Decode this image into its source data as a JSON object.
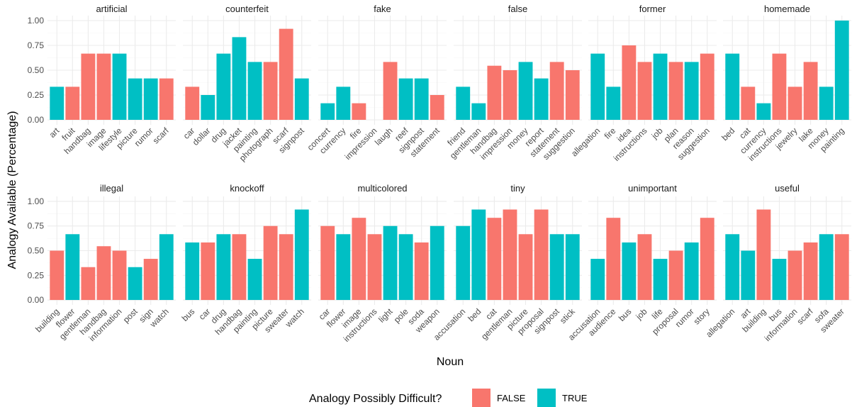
{
  "chart_data": {
    "type": "bar",
    "xlabel": "Noun",
    "ylabel": "Analogy Available (Percentage)",
    "ylim": [
      0,
      1
    ],
    "yticks": [
      "0.00",
      "0.25",
      "0.50",
      "0.75",
      "1.00"
    ],
    "grid": true,
    "legend": {
      "title": "Analogy Possibly Difficult?",
      "placement": "bottom",
      "entries": [
        {
          "label": "FALSE",
          "color": "#F8766D"
        },
        {
          "label": "TRUE",
          "color": "#00BFC4"
        }
      ]
    },
    "facets": [
      {
        "name": "artificial",
        "bars": [
          {
            "noun": "art",
            "value": 0.333,
            "difficult": "TRUE"
          },
          {
            "noun": "fruit",
            "value": 0.333,
            "difficult": "FALSE"
          },
          {
            "noun": "handbag",
            "value": 0.667,
            "difficult": "FALSE"
          },
          {
            "noun": "image",
            "value": 0.667,
            "difficult": "FALSE"
          },
          {
            "noun": "lifestyle",
            "value": 0.667,
            "difficult": "TRUE"
          },
          {
            "noun": "picture",
            "value": 0.417,
            "difficult": "TRUE"
          },
          {
            "noun": "rumor",
            "value": 0.417,
            "difficult": "TRUE"
          },
          {
            "noun": "scarf",
            "value": 0.417,
            "difficult": "FALSE"
          }
        ]
      },
      {
        "name": "counterfeit",
        "bars": [
          {
            "noun": "car",
            "value": 0.333,
            "difficult": "FALSE"
          },
          {
            "noun": "dollar",
            "value": 0.25,
            "difficult": "TRUE"
          },
          {
            "noun": "drug",
            "value": 0.667,
            "difficult": "TRUE"
          },
          {
            "noun": "jacket",
            "value": 0.833,
            "difficult": "TRUE"
          },
          {
            "noun": "painting",
            "value": 0.583,
            "difficult": "TRUE"
          },
          {
            "noun": "photograph",
            "value": 0.583,
            "difficult": "FALSE"
          },
          {
            "noun": "scarf",
            "value": 0.917,
            "difficult": "FALSE"
          },
          {
            "noun": "signpost",
            "value": 0.417,
            "difficult": "TRUE"
          }
        ]
      },
      {
        "name": "fake",
        "bars": [
          {
            "noun": "concert",
            "value": 0.167,
            "difficult": "TRUE"
          },
          {
            "noun": "currency",
            "value": 0.333,
            "difficult": "TRUE"
          },
          {
            "noun": "fire",
            "value": 0.167,
            "difficult": "FALSE"
          },
          {
            "noun": "impression",
            "value": 0.0,
            "difficult": "FALSE"
          },
          {
            "noun": "laugh",
            "value": 0.583,
            "difficult": "FALSE"
          },
          {
            "noun": "reef",
            "value": 0.417,
            "difficult": "TRUE"
          },
          {
            "noun": "signpost",
            "value": 0.417,
            "difficult": "TRUE"
          },
          {
            "noun": "statement",
            "value": 0.25,
            "difficult": "FALSE"
          }
        ]
      },
      {
        "name": "false",
        "bars": [
          {
            "noun": "friend",
            "value": 0.333,
            "difficult": "TRUE"
          },
          {
            "noun": "gentleman",
            "value": 0.167,
            "difficult": "TRUE"
          },
          {
            "noun": "handbag",
            "value": 0.545,
            "difficult": "FALSE"
          },
          {
            "noun": "impression",
            "value": 0.5,
            "difficult": "FALSE"
          },
          {
            "noun": "money",
            "value": 0.583,
            "difficult": "TRUE"
          },
          {
            "noun": "report",
            "value": 0.417,
            "difficult": "TRUE"
          },
          {
            "noun": "statement",
            "value": 0.583,
            "difficult": "FALSE"
          },
          {
            "noun": "suggestion",
            "value": 0.5,
            "difficult": "FALSE"
          }
        ]
      },
      {
        "name": "former",
        "bars": [
          {
            "noun": "allegation",
            "value": 0.667,
            "difficult": "TRUE"
          },
          {
            "noun": "fire",
            "value": 0.333,
            "difficult": "TRUE"
          },
          {
            "noun": "idea",
            "value": 0.75,
            "difficult": "FALSE"
          },
          {
            "noun": "instructions",
            "value": 0.583,
            "difficult": "FALSE"
          },
          {
            "noun": "job",
            "value": 0.667,
            "difficult": "TRUE"
          },
          {
            "noun": "plan",
            "value": 0.583,
            "difficult": "FALSE"
          },
          {
            "noun": "reason",
            "value": 0.583,
            "difficult": "TRUE"
          },
          {
            "noun": "suggestion",
            "value": 0.667,
            "difficult": "FALSE"
          }
        ]
      },
      {
        "name": "homemade",
        "bars": [
          {
            "noun": "bed",
            "value": 0.667,
            "difficult": "TRUE"
          },
          {
            "noun": "cat",
            "value": 0.333,
            "difficult": "FALSE"
          },
          {
            "noun": "currency",
            "value": 0.167,
            "difficult": "TRUE"
          },
          {
            "noun": "instructions",
            "value": 0.667,
            "difficult": "FALSE"
          },
          {
            "noun": "jewelry",
            "value": 0.333,
            "difficult": "FALSE"
          },
          {
            "noun": "lake",
            "value": 0.583,
            "difficult": "FALSE"
          },
          {
            "noun": "money",
            "value": 0.333,
            "difficult": "TRUE"
          },
          {
            "noun": "painting",
            "value": 1.0,
            "difficult": "TRUE"
          }
        ]
      },
      {
        "name": "illegal",
        "bars": [
          {
            "noun": "building",
            "value": 0.5,
            "difficult": "FALSE"
          },
          {
            "noun": "flower",
            "value": 0.667,
            "difficult": "TRUE"
          },
          {
            "noun": "gentleman",
            "value": 0.333,
            "difficult": "FALSE"
          },
          {
            "noun": "handbag",
            "value": 0.545,
            "difficult": "FALSE"
          },
          {
            "noun": "information",
            "value": 0.5,
            "difficult": "FALSE"
          },
          {
            "noun": "post",
            "value": 0.333,
            "difficult": "TRUE"
          },
          {
            "noun": "sign",
            "value": 0.417,
            "difficult": "FALSE"
          },
          {
            "noun": "watch",
            "value": 0.667,
            "difficult": "TRUE"
          }
        ]
      },
      {
        "name": "knockoff",
        "bars": [
          {
            "noun": "bus",
            "value": 0.583,
            "difficult": "TRUE"
          },
          {
            "noun": "car",
            "value": 0.583,
            "difficult": "FALSE"
          },
          {
            "noun": "drug",
            "value": 0.667,
            "difficult": "TRUE"
          },
          {
            "noun": "handbag",
            "value": 0.667,
            "difficult": "FALSE"
          },
          {
            "noun": "painting",
            "value": 0.417,
            "difficult": "TRUE"
          },
          {
            "noun": "picture",
            "value": 0.75,
            "difficult": "FALSE"
          },
          {
            "noun": "sweater",
            "value": 0.667,
            "difficult": "FALSE"
          },
          {
            "noun": "watch",
            "value": 0.917,
            "difficult": "TRUE"
          }
        ]
      },
      {
        "name": "multicolored",
        "bars": [
          {
            "noun": "car",
            "value": 0.75,
            "difficult": "FALSE"
          },
          {
            "noun": "flower",
            "value": 0.667,
            "difficult": "TRUE"
          },
          {
            "noun": "image",
            "value": 0.833,
            "difficult": "FALSE"
          },
          {
            "noun": "instructions",
            "value": 0.667,
            "difficult": "FALSE"
          },
          {
            "noun": "light",
            "value": 0.75,
            "difficult": "TRUE"
          },
          {
            "noun": "pole",
            "value": 0.667,
            "difficult": "TRUE"
          },
          {
            "noun": "soda",
            "value": 0.583,
            "difficult": "FALSE"
          },
          {
            "noun": "weapon",
            "value": 0.75,
            "difficult": "TRUE"
          }
        ]
      },
      {
        "name": "tiny",
        "bars": [
          {
            "noun": "accusation",
            "value": 0.75,
            "difficult": "TRUE"
          },
          {
            "noun": "bed",
            "value": 0.917,
            "difficult": "TRUE"
          },
          {
            "noun": "cat",
            "value": 0.833,
            "difficult": "FALSE"
          },
          {
            "noun": "gentleman",
            "value": 0.917,
            "difficult": "FALSE"
          },
          {
            "noun": "picture",
            "value": 0.667,
            "difficult": "FALSE"
          },
          {
            "noun": "proposal",
            "value": 0.917,
            "difficult": "FALSE"
          },
          {
            "noun": "signpost",
            "value": 0.667,
            "difficult": "TRUE"
          },
          {
            "noun": "stick",
            "value": 0.667,
            "difficult": "TRUE"
          }
        ]
      },
      {
        "name": "unimportant",
        "bars": [
          {
            "noun": "accusation",
            "value": 0.417,
            "difficult": "TRUE"
          },
          {
            "noun": "audience",
            "value": 0.833,
            "difficult": "FALSE"
          },
          {
            "noun": "bus",
            "value": 0.583,
            "difficult": "TRUE"
          },
          {
            "noun": "job",
            "value": 0.667,
            "difficult": "FALSE"
          },
          {
            "noun": "life",
            "value": 0.417,
            "difficult": "TRUE"
          },
          {
            "noun": "proposal",
            "value": 0.5,
            "difficult": "FALSE"
          },
          {
            "noun": "rumor",
            "value": 0.583,
            "difficult": "TRUE"
          },
          {
            "noun": "story",
            "value": 0.833,
            "difficult": "FALSE"
          }
        ]
      },
      {
        "name": "useful",
        "bars": [
          {
            "noun": "allegation",
            "value": 0.667,
            "difficult": "TRUE"
          },
          {
            "noun": "art",
            "value": 0.5,
            "difficult": "TRUE"
          },
          {
            "noun": "building",
            "value": 0.917,
            "difficult": "FALSE"
          },
          {
            "noun": "bus",
            "value": 0.417,
            "difficult": "TRUE"
          },
          {
            "noun": "information",
            "value": 0.5,
            "difficult": "FALSE"
          },
          {
            "noun": "scarf",
            "value": 0.583,
            "difficult": "FALSE"
          },
          {
            "noun": "sofa",
            "value": 0.667,
            "difficult": "TRUE"
          },
          {
            "noun": "sweater",
            "value": 0.667,
            "difficult": "FALSE"
          }
        ]
      }
    ]
  }
}
